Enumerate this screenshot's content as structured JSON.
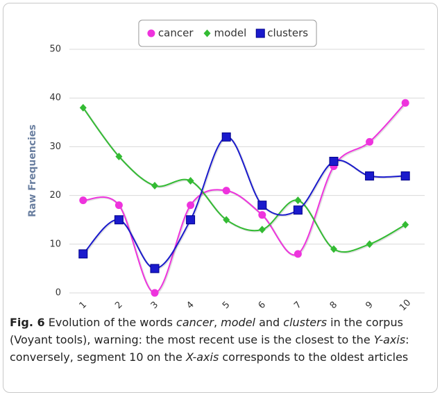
{
  "chart_data": {
    "type": "line",
    "y_label": "Raw Frequencies",
    "categories": [
      "1",
      "2",
      "3",
      "4",
      "5",
      "6",
      "7",
      "8",
      "9",
      "10"
    ],
    "series": [
      {
        "name": "cancer",
        "color": "#ee33dd",
        "marker": "circle",
        "values": [
          19,
          18,
          0,
          18,
          21,
          16,
          8,
          26,
          31,
          39
        ]
      },
      {
        "name": "model",
        "color": "#33bb33",
        "marker": "diamond",
        "values": [
          38,
          28,
          22,
          23,
          15,
          13,
          19,
          9,
          10,
          14
        ]
      },
      {
        "name": "clusters",
        "color": "#1a1acc",
        "marker": "square",
        "values": [
          8,
          15,
          5,
          15,
          32,
          18,
          17,
          27,
          24,
          24
        ]
      }
    ],
    "ylim": [
      0,
      50
    ],
    "yticks": [
      0,
      10,
      20,
      30,
      40,
      50
    ],
    "grid": true,
    "legend": "top"
  },
  "caption": {
    "label": "Fig. 6",
    "parts": [
      {
        "text": " Evolution of the words "
      },
      {
        "text": "cancer",
        "italic": true
      },
      {
        "text": ", "
      },
      {
        "text": "model",
        "italic": true
      },
      {
        "text": " and "
      },
      {
        "text": "clusters",
        "italic": true
      },
      {
        "text": " in the corpus (Voyant tools), warning: the most recent use is the closest to the "
      },
      {
        "text": "Y-axis",
        "italic": true
      },
      {
        "text": ": conversely, segment 10 on the "
      },
      {
        "text": "X-axis",
        "italic": true
      },
      {
        "text": " corresponds to the oldest articles"
      }
    ]
  }
}
